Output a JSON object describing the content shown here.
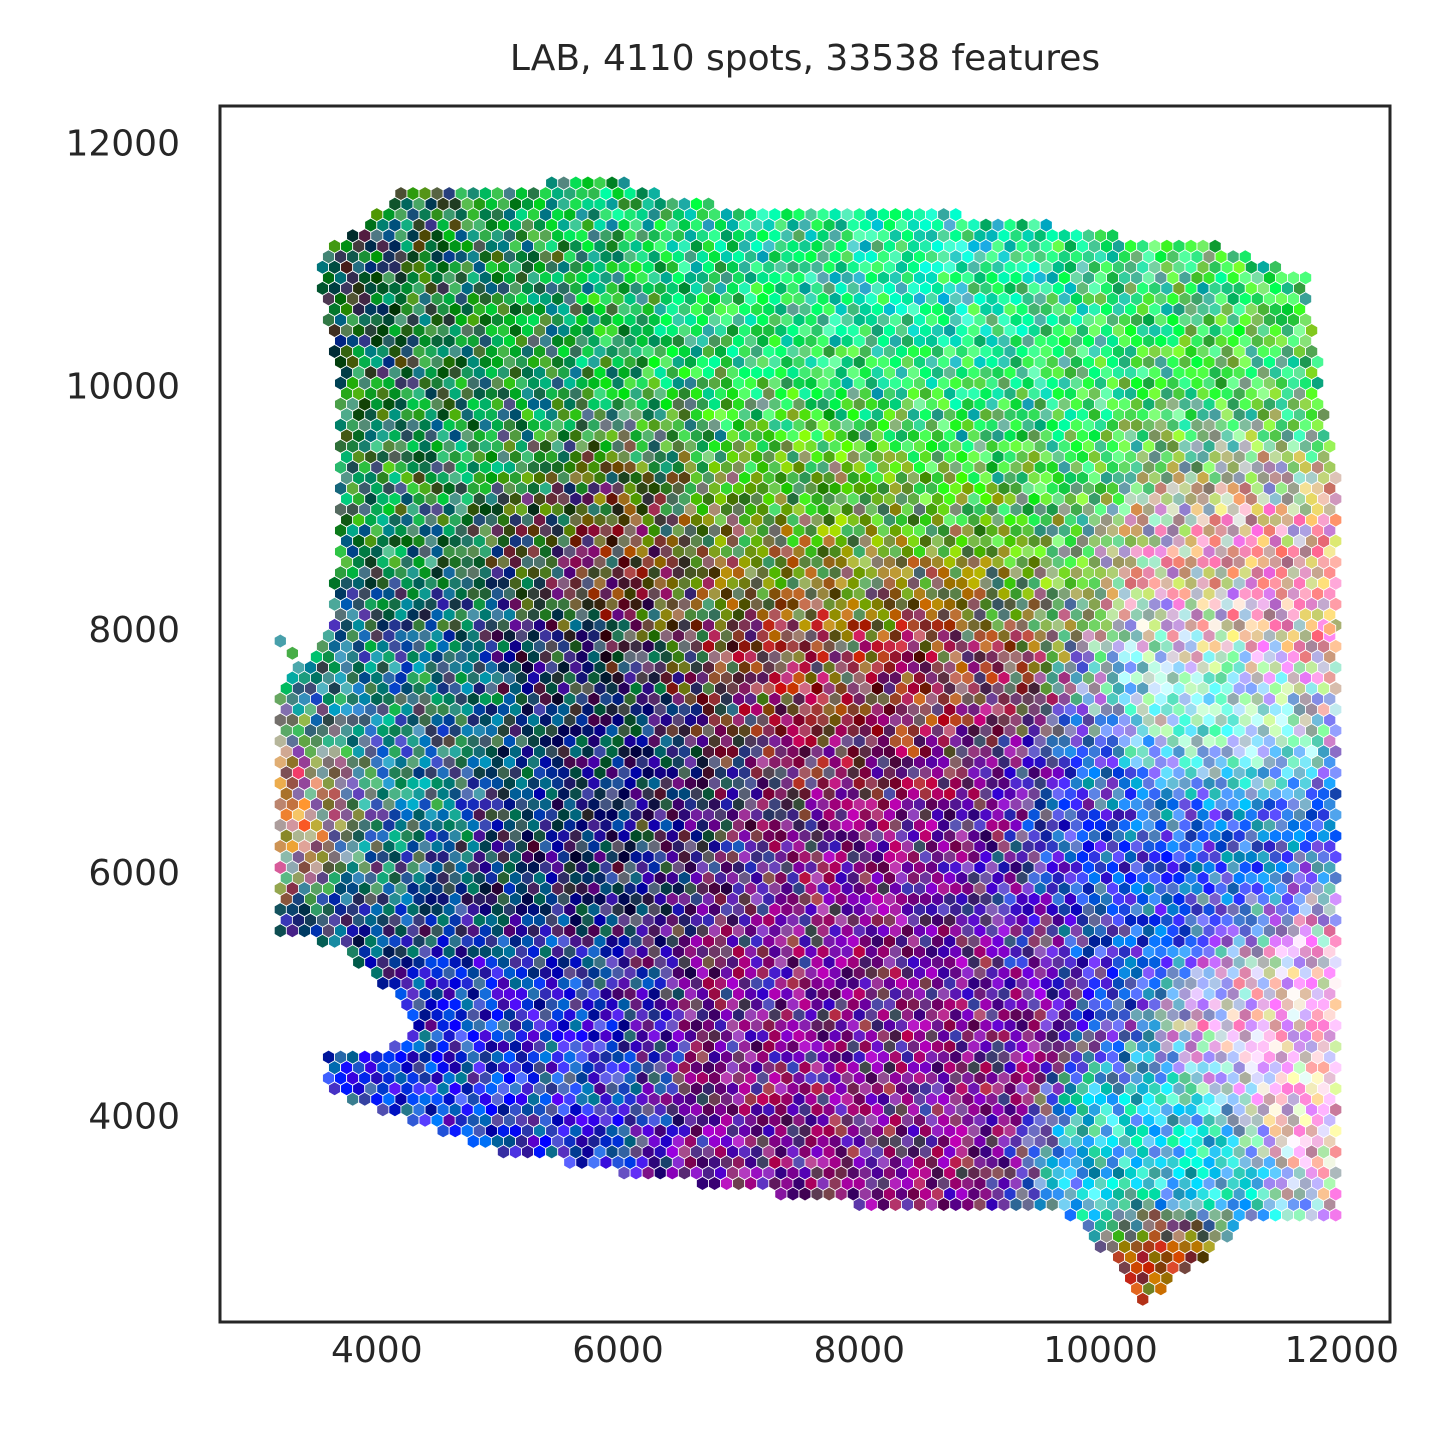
{
  "chart_data": {
    "type": "scatter",
    "title": "LAB, 4110 spots, 33538 features",
    "xlabel": "",
    "ylabel": "",
    "xlim": [
      2700,
      12400
    ],
    "ylim": [
      2300,
      12300
    ],
    "x_ticks": [
      4000,
      6000,
      8000,
      10000,
      12000
    ],
    "y_ticks": [
      4000,
      6000,
      8000,
      10000,
      12000
    ],
    "x_tick_labels": [
      "4000",
      "6000",
      "8000",
      "10000",
      "12000"
    ],
    "y_tick_labels": [
      "4000",
      "6000",
      "8000",
      "10000",
      "12000"
    ],
    "grid": false,
    "marker": "hexagon",
    "spot_count": 4110,
    "feature_count": 33538,
    "tissue_region": {
      "outline": [
        [
          3700,
          11200
        ],
        [
          4200,
          11600
        ],
        [
          6000,
          11700
        ],
        [
          6600,
          11500
        ],
        [
          9000,
          11400
        ],
        [
          10400,
          11200
        ],
        [
          10800,
          11200
        ],
        [
          11700,
          10900
        ],
        [
          11800,
          10200
        ],
        [
          12000,
          9000
        ],
        [
          12000,
          7500
        ],
        [
          12000,
          5000
        ],
        [
          12000,
          3100
        ],
        [
          11200,
          3100
        ],
        [
          10700,
          2700
        ],
        [
          10300,
          2400
        ],
        [
          10100,
          2800
        ],
        [
          9700,
          3200
        ],
        [
          8400,
          3200
        ],
        [
          7700,
          3300
        ],
        [
          6200,
          3500
        ],
        [
          5000,
          3700
        ],
        [
          4700,
          3800
        ],
        [
          4100,
          4000
        ],
        [
          3600,
          4200
        ],
        [
          3600,
          4500
        ],
        [
          4100,
          4500
        ],
        [
          4300,
          4800
        ],
        [
          3700,
          5400
        ],
        [
          3200,
          5500
        ],
        [
          3200,
          7500
        ],
        [
          3600,
          8000
        ],
        [
          3700,
          9000
        ],
        [
          3700,
          10000
        ],
        [
          3500,
          11000
        ]
      ],
      "outliers": [
        [
          3200,
          7900
        ],
        [
          3300,
          7800
        ],
        [
          11900,
          8000
        ],
        [
          11900,
          7600
        ]
      ]
    },
    "color_regions": [
      {
        "center": [
          7500,
          10600
        ],
        "color": "#00e07a",
        "spread": 2200
      },
      {
        "center": [
          8500,
          10900
        ],
        "color": "#22f5c0",
        "spread": 1400
      },
      {
        "center": [
          5000,
          10300
        ],
        "color": "#1a8a4a",
        "spread": 1600
      },
      {
        "center": [
          4000,
          10800
        ],
        "color": "#0b4a40",
        "spread": 900
      },
      {
        "center": [
          10800,
          10400
        ],
        "color": "#44e060",
        "spread": 1400
      },
      {
        "center": [
          7800,
          9000
        ],
        "color": "#9ab800",
        "spread": 1500
      },
      {
        "center": [
          6100,
          8800
        ],
        "color": "#8a0a20",
        "spread": 900
      },
      {
        "center": [
          5600,
          6800
        ],
        "color": "#0a2a66",
        "spread": 1500
      },
      {
        "center": [
          4300,
          6900
        ],
        "color": "#1a9a9a",
        "spread": 900
      },
      {
        "center": [
          3400,
          6600
        ],
        "color": "#f08060",
        "spread": 500
      },
      {
        "center": [
          7800,
          7700
        ],
        "color": "#a00a40",
        "spread": 1200
      },
      {
        "center": [
          8200,
          5600
        ],
        "color": "#7a0a8a",
        "spread": 1700
      },
      {
        "center": [
          5200,
          4600
        ],
        "color": "#1a3ad0",
        "spread": 900
      },
      {
        "center": [
          10300,
          6000
        ],
        "color": "#1a5ae8",
        "spread": 1100
      },
      {
        "center": [
          10800,
          7300
        ],
        "color": "#90fff0",
        "spread": 700
      },
      {
        "center": [
          11200,
          8600
        ],
        "color": "#f0a0b0",
        "spread": 1000
      },
      {
        "center": [
          11400,
          4800
        ],
        "color": "#f8c0d8",
        "spread": 800
      },
      {
        "center": [
          10400,
          3800
        ],
        "color": "#20c8d8",
        "spread": 700
      },
      {
        "center": [
          10500,
          2800
        ],
        "color": "#a04a00",
        "spread": 400
      }
    ]
  }
}
